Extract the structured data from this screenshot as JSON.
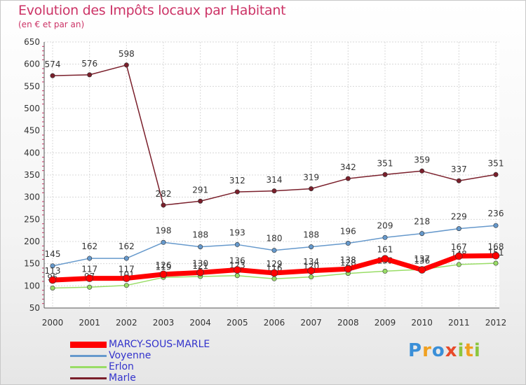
{
  "header": {
    "title": "Evolution des Impôts locaux par Habitant",
    "subtitle": "(en € et par an)"
  },
  "logo": {
    "text": "Proxiti"
  },
  "colors": {
    "marcy": "#ff0000",
    "voyenne": "#6699cc",
    "erlon": "#99dd66",
    "marle": "#7a1f2b",
    "axis_text": "#333333",
    "grid": "#d8d8d8"
  },
  "chart_data": {
    "type": "line",
    "title": "Evolution des Impôts locaux par Habitant",
    "subtitle": "(en € et par an)",
    "x": [
      "2000",
      "2001",
      "2002",
      "2003",
      "2004",
      "2005",
      "2006",
      "2007",
      "2008",
      "2009",
      "2010",
      "2011",
      "2012"
    ],
    "ylim": [
      50,
      650
    ],
    "yticks": [
      50,
      100,
      150,
      200,
      250,
      300,
      350,
      400,
      450,
      500,
      550,
      600,
      650
    ],
    "grid": true,
    "legend_position": "bottom-left",
    "series": [
      {
        "name": "MARCY-SOUS-MARLE",
        "color_key": "marcy",
        "values": [
          113,
          117,
          117,
          126,
          130,
          136,
          129,
          134,
          138,
          161,
          136,
          167,
          168
        ]
      },
      {
        "name": "Voyenne",
        "color_key": "voyenne",
        "values": [
          145,
          162,
          162,
          198,
          188,
          193,
          180,
          188,
          196,
          209,
          218,
          229,
          236
        ]
      },
      {
        "name": "Erlon",
        "color_key": "erlon",
        "values": [
          95,
          97,
          101,
          119,
          121,
          123,
          116,
          120,
          128,
          133,
          137,
          148,
          151
        ]
      },
      {
        "name": "Marle",
        "color_key": "marle",
        "values": [
          574,
          576,
          598,
          282,
          291,
          312,
          314,
          319,
          342,
          351,
          359,
          337,
          351
        ]
      }
    ]
  }
}
